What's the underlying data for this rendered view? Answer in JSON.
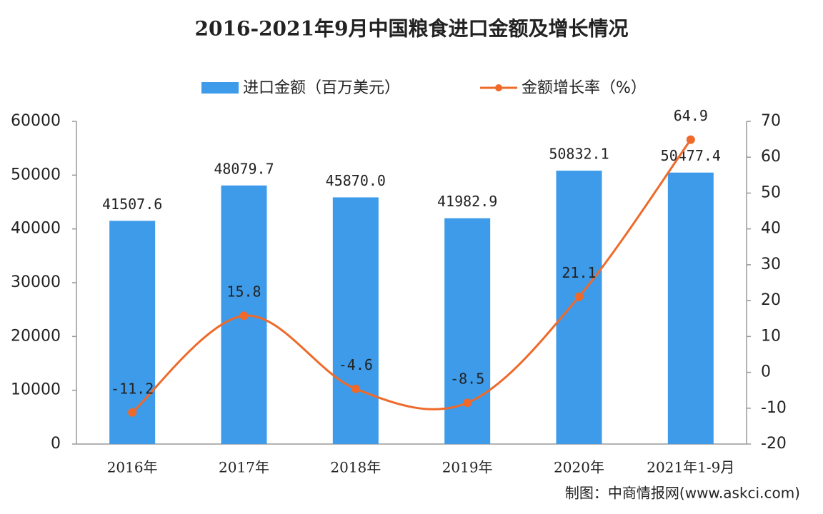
{
  "chart_data": {
    "type": "combo",
    "title": "2016-2021年9月中国粮食进口金额及增长情况",
    "categories": [
      "2016年",
      "2017年",
      "2018年",
      "2019年",
      "2020年",
      "2021年1-9月"
    ],
    "series": [
      {
        "name": "进口金额（百万美元）",
        "type": "bar",
        "color": "#3d9be9",
        "axis": "y",
        "values": [
          41507.6,
          48079.7,
          45870.0,
          41982.9,
          50832.1,
          50477.4
        ],
        "value_labels": [
          "41507.6",
          "48079.7",
          "45870.0",
          "41982.9",
          "50832.1",
          "50477.4"
        ]
      },
      {
        "name": "金额增长率（%）",
        "type": "line",
        "color": "#ef6a2a",
        "axis": "y2",
        "values": [
          -11.2,
          15.8,
          -4.6,
          -8.5,
          21.1,
          64.9
        ]
      }
    ],
    "ylim": [
      0,
      60000
    ],
    "yticks": [
      0,
      10000,
      20000,
      30000,
      40000,
      50000,
      60000
    ],
    "y2lim": [
      -20,
      70
    ],
    "y2ticks": [
      -20,
      -10,
      0,
      10,
      20,
      30,
      40,
      50,
      60,
      70
    ],
    "source": "制图：中商情报网(www.askci.com)"
  }
}
